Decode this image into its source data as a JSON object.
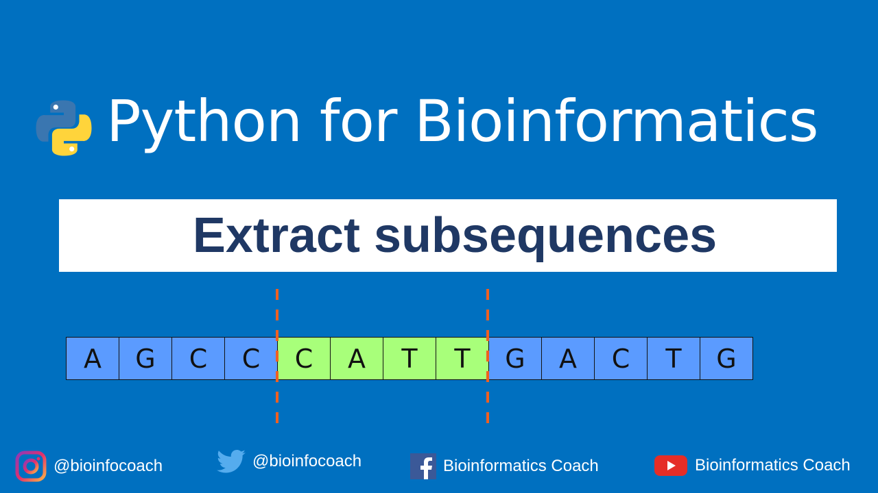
{
  "header": {
    "title": "Python for Bioinformatics",
    "logo_icon": "python-logo-icon"
  },
  "banner": {
    "text": "Extract subsequences"
  },
  "sequence": {
    "bases": [
      "A",
      "G",
      "C",
      "C",
      "C",
      "A",
      "T",
      "T",
      "G",
      "A",
      "C",
      "T",
      "G"
    ],
    "highlight_start": 4,
    "highlight_end": 8,
    "colors": {
      "normal": "#5b9bff",
      "highlight": "#a8ff7a",
      "cut_line": "#f06020"
    }
  },
  "social": [
    {
      "icon": "instagram-icon",
      "label": "@bioinfocoach"
    },
    {
      "icon": "twitter-icon",
      "label": "@bioinfocoach"
    },
    {
      "icon": "facebook-icon",
      "label": "Bioinformatics Coach"
    },
    {
      "icon": "youtube-icon",
      "label": "Bioinformatics Coach"
    }
  ]
}
